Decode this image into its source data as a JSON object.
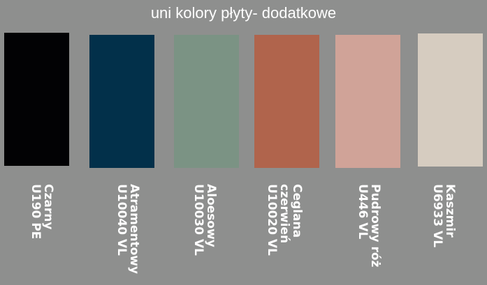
{
  "title": "uni kolory płyty- dodatkowe",
  "swatches": [
    {
      "name": "Czarny",
      "code": "U190 PE",
      "color": "#020204"
    },
    {
      "name": "Atramentowy",
      "code": "U10040 VL",
      "color": "#02304a"
    },
    {
      "name": "Aloesowy",
      "code": "U10030 VL",
      "color": "#7b9384"
    },
    {
      "name": "Ceglana\nczerwień",
      "code": "U10020 VL",
      "color": "#b0644c"
    },
    {
      "name": "Pudrowy róż",
      "code": "U446 VL",
      "color": "#d0a398"
    },
    {
      "name": "Kaszmir",
      "code": "U6933 VL",
      "color": "#d6ccc0"
    }
  ]
}
